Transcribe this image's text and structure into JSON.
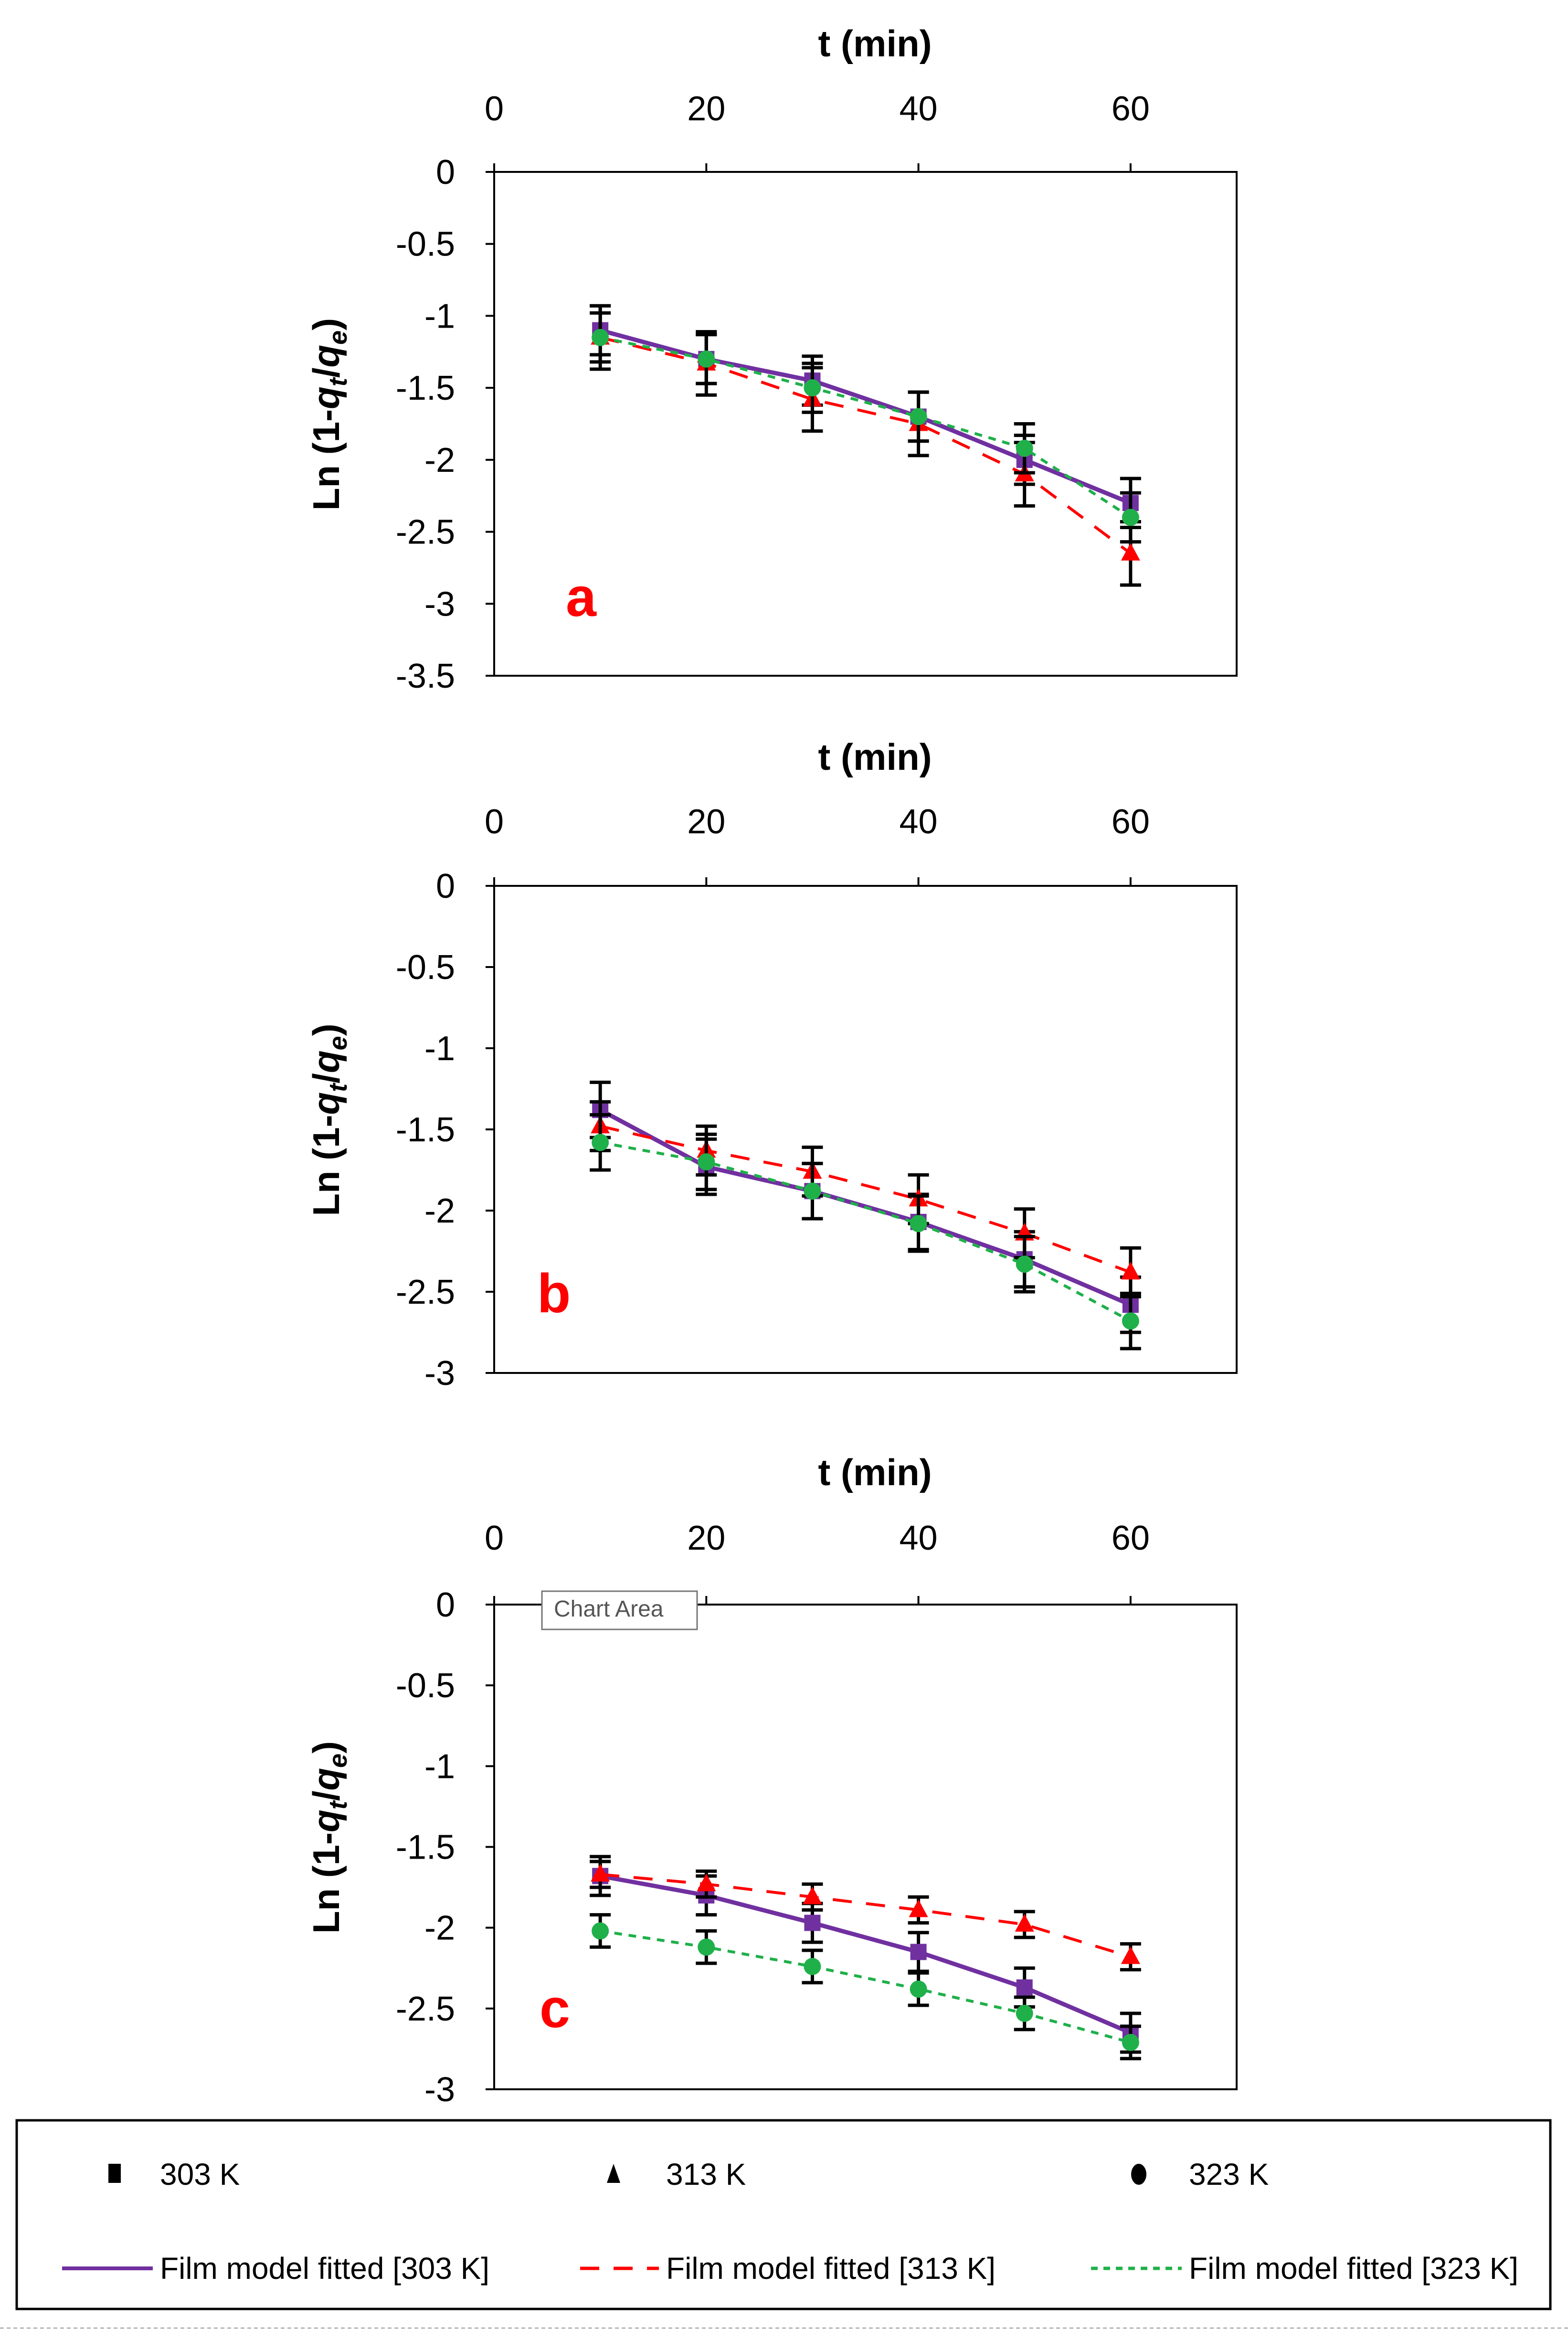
{
  "tooltip": "Chart Area",
  "legend": {
    "items": [
      {
        "label": "303 K",
        "marker": "square",
        "color": "#000000"
      },
      {
        "label": "313 K",
        "marker": "triangle",
        "color": "#000000"
      },
      {
        "label": "323 K",
        "marker": "circle",
        "color": "#000000"
      },
      {
        "label": "Film model fitted [303 K]",
        "line": "solid",
        "color": "#7030a0"
      },
      {
        "label": "Film model fitted [313 K]",
        "line": "dashed",
        "color": "#ff0000"
      },
      {
        "label": "Film model fitted [323 K]",
        "line": "dotted",
        "color": "#00b050"
      }
    ]
  },
  "colors": {
    "s303": "#7030a0",
    "s313": "#ff0000",
    "s323": "#1fb04a",
    "error": "#000000",
    "letter": "#ff0000"
  },
  "chart_data": [
    {
      "type": "scatter",
      "panel": "a",
      "xlabel": "t (min)",
      "ylabel": "Ln (1-q_t/q_e)",
      "xlim": [
        0,
        70
      ],
      "ylim": [
        -3.5,
        0
      ],
      "xticks": [
        "0",
        "20",
        "40",
        "60"
      ],
      "yticks": [
        "0",
        "-0.5",
        "-1",
        "-1.5",
        "-2",
        "-2.5",
        "-3",
        "-3.5"
      ],
      "x": [
        10,
        20,
        30,
        40,
        50,
        60
      ],
      "series": [
        {
          "name": "303 K",
          "values": [
            -1.1,
            -1.3,
            -1.45,
            -1.7,
            -2.0,
            -2.3
          ],
          "err": 0.17
        },
        {
          "name": "313 K",
          "values": [
            -1.15,
            -1.33,
            -1.58,
            -1.75,
            -2.1,
            -2.65
          ],
          "err": 0.22
        },
        {
          "name": "323 K",
          "values": [
            -1.15,
            -1.3,
            -1.5,
            -1.7,
            -1.92,
            -2.4
          ],
          "err": 0.17
        }
      ]
    },
    {
      "type": "scatter",
      "panel": "b",
      "xlabel": "t (min)",
      "ylabel": "Ln (1-q_t/q_e)",
      "xlim": [
        0,
        70
      ],
      "ylim": [
        -3,
        0
      ],
      "xticks": [
        "0",
        "20",
        "40",
        "60"
      ],
      "yticks": [
        "0",
        "-0.5",
        "-1",
        "-1.5",
        "-2",
        "-2.5",
        "-3"
      ],
      "x": [
        10,
        20,
        30,
        40,
        50,
        60
      ],
      "series": [
        {
          "name": "303 K",
          "values": [
            -1.38,
            -1.73,
            -1.88,
            -2.07,
            -2.3,
            -2.58
          ],
          "err": 0.17
        },
        {
          "name": "313 K",
          "values": [
            -1.48,
            -1.63,
            -1.76,
            -1.93,
            -2.14,
            -2.38
          ],
          "err": 0.15
        },
        {
          "name": "323 K",
          "values": [
            -1.58,
            -1.7,
            -1.88,
            -2.08,
            -2.33,
            -2.68
          ],
          "err": 0.17
        }
      ]
    },
    {
      "type": "scatter",
      "panel": "c",
      "xlabel": "t (min)",
      "ylabel": "Ln (1-q_t/q_e)",
      "xlim": [
        0,
        70
      ],
      "ylim": [
        -3,
        0
      ],
      "xticks": [
        "0",
        "20",
        "40",
        "60"
      ],
      "yticks": [
        "0",
        "-0.5",
        "-1",
        "-1.5",
        "-2",
        "-2.5",
        "-3"
      ],
      "x": [
        10,
        20,
        30,
        40,
        50,
        60
      ],
      "series": [
        {
          "name": "303 K",
          "values": [
            -1.68,
            -1.8,
            -1.97,
            -2.15,
            -2.37,
            -2.65
          ],
          "err": 0.12
        },
        {
          "name": "313 K",
          "values": [
            -1.67,
            -1.73,
            -1.81,
            -1.89,
            -1.98,
            -2.18
          ],
          "err": 0.08
        },
        {
          "name": "323 K",
          "values": [
            -2.02,
            -2.12,
            -2.24,
            -2.38,
            -2.53,
            -2.71
          ],
          "err": 0.1
        }
      ]
    }
  ]
}
